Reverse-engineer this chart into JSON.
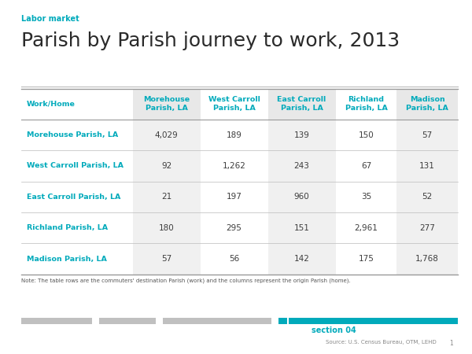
{
  "label_tag": "Labor market",
  "title": "Parish by Parish journey to work, 2013",
  "col_header": [
    "Work/Home",
    "Morehouse\nParish, LA",
    "West Carroll\nParish, LA",
    "East Carroll\nParish, LA",
    "Richland\nParish, LA",
    "Madison\nParish, LA"
  ],
  "row_labels": [
    "Morehouse Parish, LA",
    "West Carroll Parish, LA",
    "East Carroll Parish, LA",
    "Richland Parish, LA",
    "Madison Parish, LA"
  ],
  "table_data": [
    [
      "4,029",
      "189",
      "139",
      "150",
      "57"
    ],
    [
      "92",
      "1,262",
      "243",
      "67",
      "131"
    ],
    [
      "21",
      "197",
      "960",
      "35",
      "52"
    ],
    [
      "180",
      "295",
      "151",
      "2,961",
      "277"
    ],
    [
      "57",
      "56",
      "142",
      "175",
      "1,768"
    ]
  ],
  "note": "Note: The table rows are the commuters' destination Parish (work) and the columns represent the origin Parish (home).",
  "source": "Source: U.S. Census Bureau, OTM, LEHD",
  "section": "section 04",
  "teal_color": "#00AABB",
  "dark_text": "#3d3d3d",
  "header_bg_shaded": "#e8e8e8",
  "header_bg_white": "#ffffff",
  "col_shaded": "#f0f0f0",
  "col_white": "#ffffff",
  "bg_color": "#ffffff",
  "footer_bar_light": "#c0c0c0",
  "footer_bar_teal": "#00AABB",
  "line_color": "#bbbbbb",
  "note_color": "#555555",
  "source_color": "#888888"
}
